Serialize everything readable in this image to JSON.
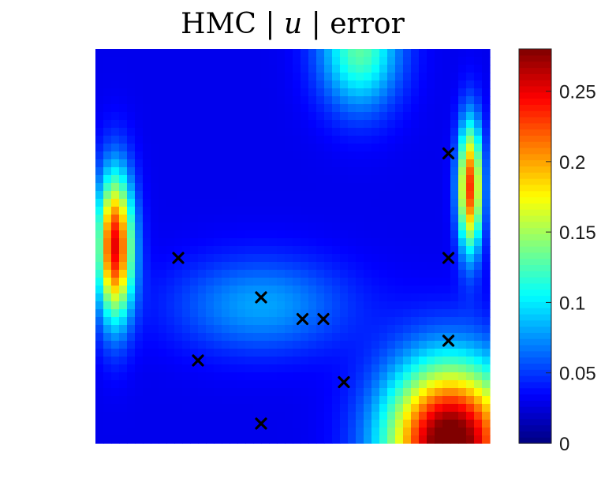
{
  "chart_data": {
    "type": "heatmap",
    "title": {
      "prefix": "HMC | ",
      "variable": "u",
      "suffix": " | error"
    },
    "xlabel": "",
    "ylabel": "",
    "colormap": "jet",
    "colorbar": {
      "range": [
        0,
        0.28
      ],
      "ticks": [
        0,
        0.05,
        0.1,
        0.15,
        0.2,
        0.25
      ],
      "tick_labels": [
        "0",
        "0.05",
        "0.1",
        "0.15",
        "0.2",
        "0.25"
      ]
    },
    "domain": {
      "x": [
        0,
        1
      ],
      "y": [
        0,
        1
      ]
    },
    "error_features": [
      {
        "name": "left-edge ridge",
        "x": 0.05,
        "y": 0.5,
        "sx": 0.045,
        "sy": 0.18,
        "peak": 0.22
      },
      {
        "name": "right-edge upper ridge",
        "x": 0.95,
        "y": 0.65,
        "sx": 0.03,
        "sy": 0.16,
        "peak": 0.2
      },
      {
        "name": "bottom-right hotspot",
        "x": 0.9,
        "y": 0.0,
        "sx": 0.16,
        "sy": 0.2,
        "peak": 0.27
      },
      {
        "name": "top-center lobe",
        "x": 0.67,
        "y": 1.0,
        "sx": 0.1,
        "sy": 0.15,
        "peak": 0.1
      },
      {
        "name": "central band",
        "x": 0.42,
        "y": 0.35,
        "sx": 0.22,
        "sy": 0.12,
        "peak": 0.05
      }
    ],
    "baseline_error": 0.03,
    "markers": {
      "symbol": "x",
      "color": "#000000",
      "points": [
        {
          "x": 0.21,
          "y": 0.47
        },
        {
          "x": 0.26,
          "y": 0.21
        },
        {
          "x": 0.42,
          "y": 0.37
        },
        {
          "x": 0.42,
          "y": 0.05
        },
        {
          "x": 0.525,
          "y": 0.315
        },
        {
          "x": 0.578,
          "y": 0.315
        },
        {
          "x": 0.63,
          "y": 0.155
        },
        {
          "x": 0.895,
          "y": 0.735
        },
        {
          "x": 0.895,
          "y": 0.47
        },
        {
          "x": 0.895,
          "y": 0.26
        }
      ]
    }
  }
}
